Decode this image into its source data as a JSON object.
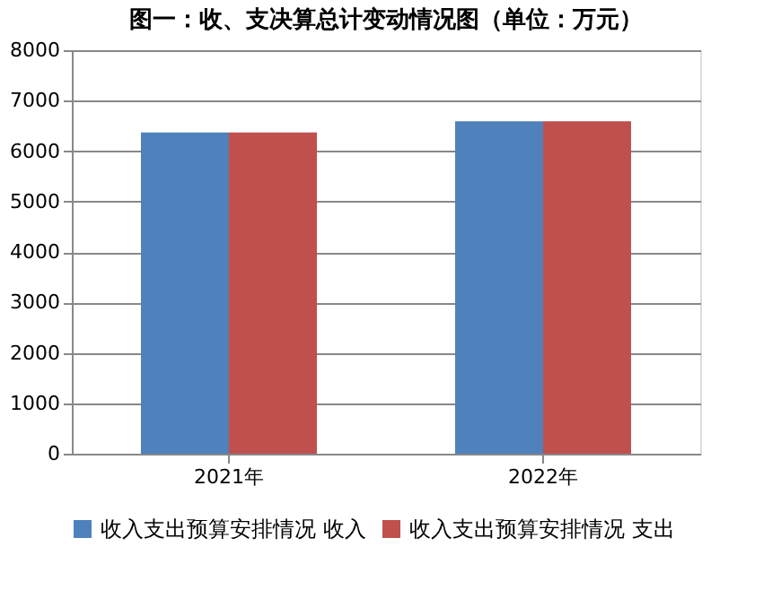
{
  "chart_data": {
    "type": "bar",
    "title": "图一：收、支决算总计变动情况图（单位：万元）",
    "categories": [
      "2021年",
      "2022年"
    ],
    "series": [
      {
        "name": "收入支出预算安排情况  收入",
        "color": "#4f81bd",
        "values": [
          6370,
          6590
        ]
      },
      {
        "name": "收入支出预算安排情况  支出",
        "color": "#c0504d",
        "values": [
          6370,
          6590
        ]
      }
    ],
    "ylim": [
      0,
      8000
    ],
    "yticks": [
      0,
      1000,
      2000,
      3000,
      4000,
      5000,
      6000,
      7000,
      8000
    ],
    "grid": "y",
    "legend": "bottom"
  }
}
